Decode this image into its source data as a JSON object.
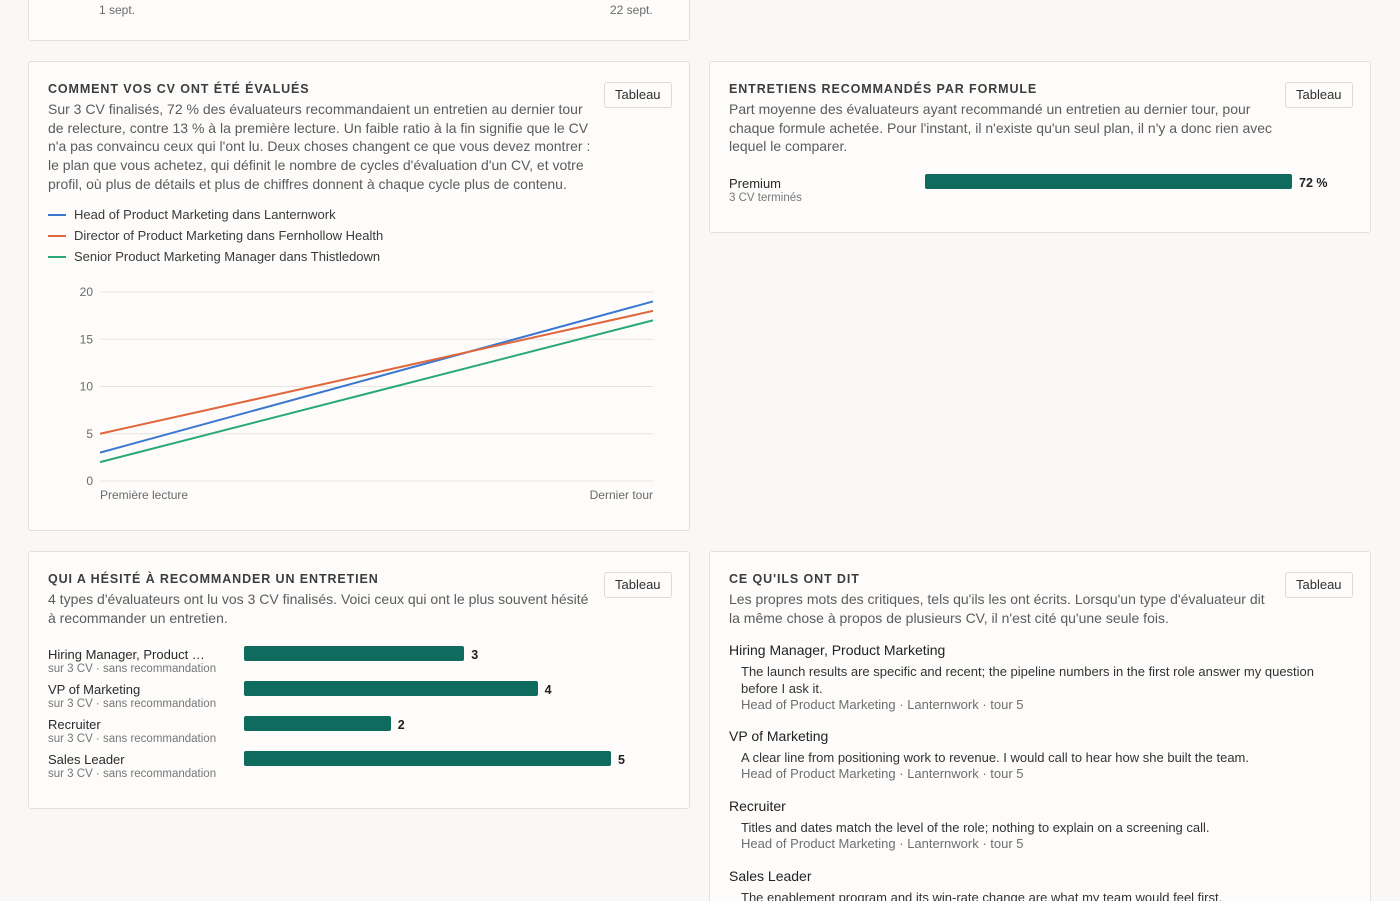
{
  "top_card": {
    "axis_start": "1 sept.",
    "axis_end": "22 sept."
  },
  "evaluation_card": {
    "title": "COMMENT VOS CV ONT ÉTÉ ÉVALUÉS",
    "button": "Tableau",
    "description": "Sur 3 CV finalisés, 72 % des évaluateurs recommandaient un entretien au dernier tour de relecture, contre 13 % à la première lecture. Un faible ratio à la fin signifie que le CV n'a pas convaincu ceux qui l'ont lu. Deux choses changent ce que vous devez montrer : le plan que vous achetez, qui définit le nombre de cycles d'évaluation d'un CV, et votre profil, où plus de détails et plus de chiffres donnent à chaque cycle plus de contenu.",
    "colors": {
      "blue": "#3a78cf",
      "orange": "#e0663c",
      "green": "#2aa877"
    }
  },
  "chart_data": {
    "type": "line",
    "x": [
      "Première lecture",
      "Dernier tour"
    ],
    "ylim": [
      0,
      20
    ],
    "yticks": [
      "0",
      "5",
      "10",
      "15",
      "20"
    ],
    "grid": true,
    "legend_position": "top-left",
    "series": [
      {
        "name": "Head of Product Marketing dans Lanternwork",
        "color": "#3a78cf",
        "values": [
          3,
          19
        ]
      },
      {
        "name": "Director of Product Marketing dans Fernhollow Health",
        "color": "#e0663c",
        "values": [
          5,
          18
        ]
      },
      {
        "name": "Senior Product Marketing Manager dans Thistledown",
        "color": "#2aa877",
        "values": [
          2,
          17
        ]
      }
    ]
  },
  "formula_card": {
    "title": "ENTRETIENS RECOMMANDÉS PAR FORMULE",
    "button": "Tableau",
    "description": "Part moyenne des évaluateurs ayant recommandé un entretien au dernier tour, pour chaque formule achetée. Pour l'instant, il n'existe qu'un seul plan, il n'y a donc rien avec lequel le comparer.",
    "rows": [
      {
        "label": "Premium",
        "sub": "3 CV terminés",
        "value": 72,
        "value_label": "72 %"
      }
    ]
  },
  "hesitation_card": {
    "title": "QUI A HÉSITÉ À RECOMMANDER UN ENTRETIEN",
    "button": "Tableau",
    "description": "4 types d'évaluateurs ont lu vos 3 CV finalisés. Voici ceux qui ont le plus souvent hésité à recommander un entretien.",
    "max": 5,
    "rows": [
      {
        "label": "Hiring Manager, Product Marketing",
        "sub": "sur 3 CV · sans recommandation",
        "value": 3,
        "value_label": "3"
      },
      {
        "label": "VP of Marketing",
        "sub": "sur 3 CV · sans recommandation",
        "value": 4,
        "value_label": "4"
      },
      {
        "label": "Recruiter",
        "sub": "sur 3 CV · sans recommandation",
        "value": 2,
        "value_label": "2"
      },
      {
        "label": "Sales Leader",
        "sub": "sur 3 CV · sans recommandation",
        "value": 5,
        "value_label": "5"
      }
    ]
  },
  "quotes_card": {
    "title": "CE QU'ILS ONT DIT",
    "button": "Tableau",
    "description": "Les propres mots des critiques, tels qu'ils les ont écrits. Lorsqu'un type d'évaluateur dit la même chose à propos de plusieurs CV, il n'est cité qu'une seule fois.",
    "quotes": [
      {
        "role": "Hiring Manager, Product Marketing",
        "text": "The launch results are specific and recent; the pipeline numbers in the first role answer my question before I ask it.",
        "meta": "Head of Product Marketing · Lanternwork · tour 5"
      },
      {
        "role": "VP of Marketing",
        "text": "A clear line from positioning work to revenue. I would call to hear how she built the team.",
        "meta": "Head of Product Marketing · Lanternwork · tour 5"
      },
      {
        "role": "Recruiter",
        "text": "Titles and dates match the level of the role; nothing to explain on a screening call.",
        "meta": "Head of Product Marketing · Lanternwork · tour 5"
      },
      {
        "role": "Sales Leader",
        "text": "The enablement program and its win-rate change are what my team would feel first."
      }
    ]
  }
}
